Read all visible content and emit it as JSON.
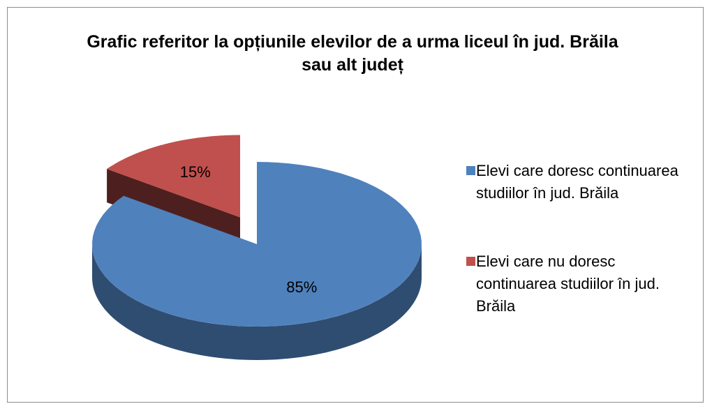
{
  "chart_data": {
    "type": "pie",
    "title": "Grafic referitor la opțiunile elevilor de a urma liceul în jud. Brăila sau alt județ",
    "categories": [
      "Elevi care doresc continuarea studiilor în jud. Brăila",
      "Elevi care nu doresc continuarea studiilor în jud. Brăila"
    ],
    "values": [
      85,
      15
    ],
    "value_labels": [
      "85%",
      "15%"
    ],
    "colors": [
      "#4f81bd",
      "#c0504d"
    ],
    "legend": "right"
  }
}
